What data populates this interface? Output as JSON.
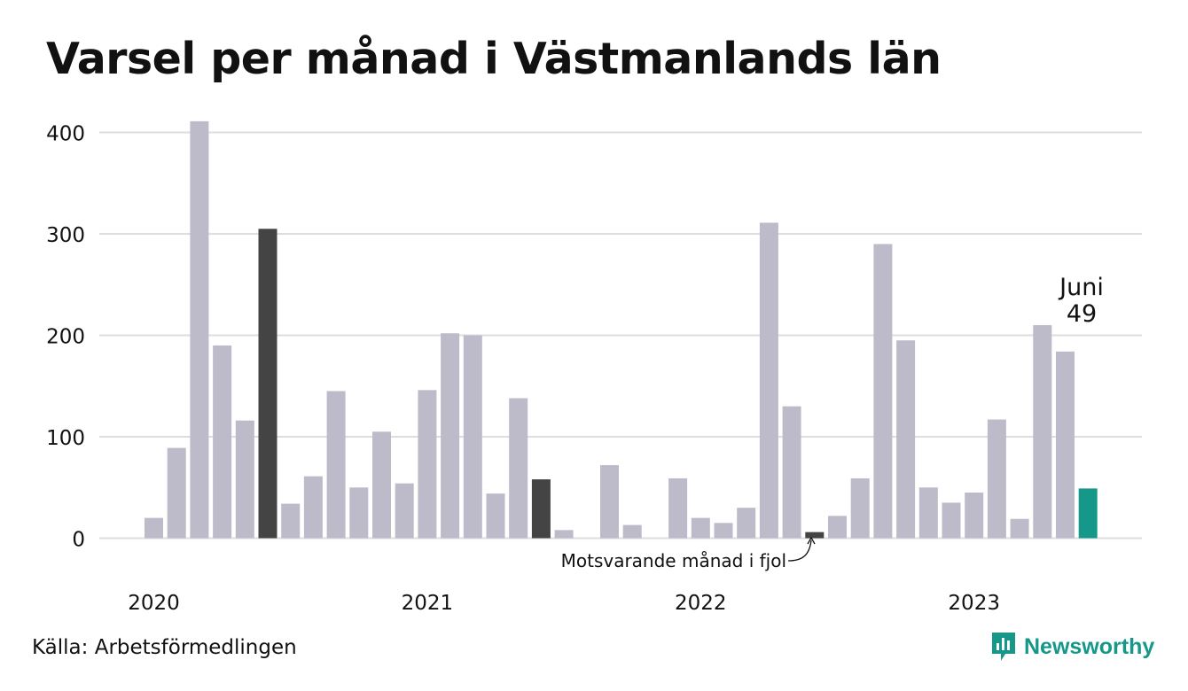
{
  "title": "Varsel per månad i Västmanlands län",
  "source": "Källa: Arbetsförmedlingen",
  "logo_text": "Newsworthy",
  "colors": {
    "bar": "#bdbbc9",
    "same_month_bar": "#444444",
    "current_bar": "#15988a",
    "grid": "#dddddd",
    "brand": "#15988a"
  },
  "chart_data": {
    "type": "bar",
    "title": "Varsel per månad i Västmanlands län",
    "xlabel": "",
    "ylabel": "",
    "ylim": [
      0,
      400
    ],
    "yticks": [
      0,
      100,
      200,
      300,
      400
    ],
    "grid": true,
    "year_labels": [
      "2020",
      "2021",
      "2022",
      "2023"
    ],
    "categories": [
      "2020-01",
      "2020-02",
      "2020-03",
      "2020-04",
      "2020-05",
      "2020-06",
      "2020-07",
      "2020-08",
      "2020-09",
      "2020-10",
      "2020-11",
      "2020-12",
      "2021-01",
      "2021-02",
      "2021-03",
      "2021-04",
      "2021-05",
      "2021-06",
      "2021-07",
      "2021-08",
      "2021-09",
      "2021-10",
      "2021-11",
      "2021-12",
      "2022-01",
      "2022-02",
      "2022-03",
      "2022-04",
      "2022-05",
      "2022-06",
      "2022-07",
      "2022-08",
      "2022-09",
      "2022-10",
      "2022-11",
      "2022-12",
      "2023-01",
      "2023-02",
      "2023-03",
      "2023-04",
      "2023-05",
      "2023-06"
    ],
    "values": [
      20,
      89,
      411,
      190,
      116,
      305,
      34,
      61,
      145,
      50,
      105,
      54,
      146,
      202,
      200,
      44,
      138,
      58,
      8,
      0,
      72,
      13,
      0,
      59,
      20,
      15,
      30,
      311,
      130,
      6,
      22,
      59,
      290,
      195,
      50,
      35,
      45,
      117,
      19,
      210,
      184,
      49
    ],
    "highlight_same_month": [
      "2020-06",
      "2021-06",
      "2022-06"
    ],
    "highlight_current": "2023-06",
    "annotations": {
      "current_label": "Juni",
      "current_value": "49",
      "same_month_note": "Motsvarande månad i fjol"
    }
  }
}
